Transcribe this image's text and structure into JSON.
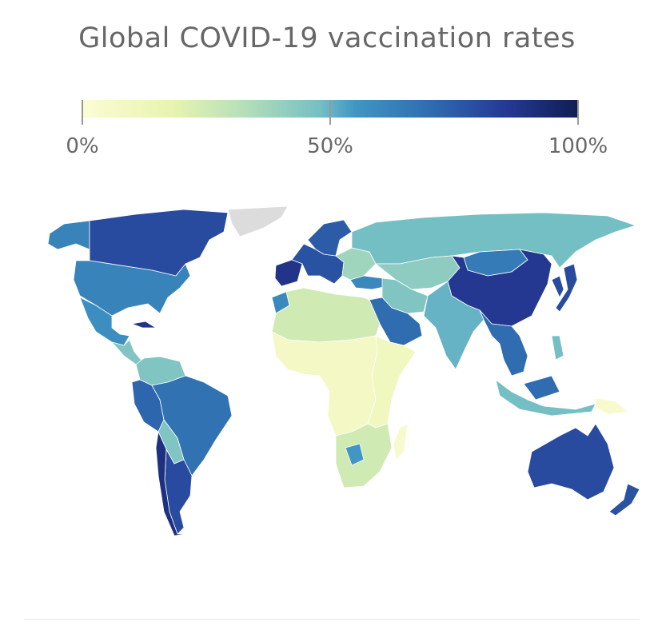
{
  "title": "Global COVID-19 vaccination rates",
  "legend": {
    "labels": [
      "0%",
      "50%",
      "100%"
    ],
    "colors": [
      "#fbfcd4",
      "#e8f4b0",
      "#b8e0b8",
      "#74bfc4",
      "#4196c4",
      "#2f6db0",
      "#253a96",
      "#101d55"
    ],
    "no_data_color": "#dcdcdc"
  },
  "chart_data": {
    "type": "choropleth",
    "title": "Global COVID-19 vaccination rates",
    "scale": {
      "min": 0,
      "max": 100,
      "unit": "%"
    },
    "regions": [
      {
        "name": "Greenland",
        "value": null
      },
      {
        "name": "Alaska (USA)",
        "value": 62
      },
      {
        "name": "Canada",
        "value": 80
      },
      {
        "name": "United States",
        "value": 62
      },
      {
        "name": "Mexico",
        "value": 58
      },
      {
        "name": "Central America",
        "value": 45
      },
      {
        "name": "Cuba",
        "value": 88
      },
      {
        "name": "Colombia/Venezuela",
        "value": 45
      },
      {
        "name": "Ecuador/Peru",
        "value": 72
      },
      {
        "name": "Brazil",
        "value": 68
      },
      {
        "name": "Bolivia/Paraguay",
        "value": 45
      },
      {
        "name": "Argentina",
        "value": 80
      },
      {
        "name": "Chile",
        "value": 90
      },
      {
        "name": "Western Europe",
        "value": 78
      },
      {
        "name": "Scandinavia",
        "value": 75
      },
      {
        "name": "Iberia",
        "value": 88
      },
      {
        "name": "Eastern Europe",
        "value": 38
      },
      {
        "name": "Russia",
        "value": 48
      },
      {
        "name": "Central Asia",
        "value": 42
      },
      {
        "name": "Mongolia",
        "value": 65
      },
      {
        "name": "China",
        "value": 86
      },
      {
        "name": "Japan/Korea",
        "value": 80
      },
      {
        "name": "Turkey",
        "value": 60
      },
      {
        "name": "Iran/Iraq",
        "value": 45
      },
      {
        "name": "Saudi Arabia/Gulf",
        "value": 70
      },
      {
        "name": "North Africa",
        "value": 25
      },
      {
        "name": "Morocco",
        "value": 60
      },
      {
        "name": "West/Central Africa",
        "value": 8
      },
      {
        "name": "East Africa",
        "value": 10
      },
      {
        "name": "Southern Africa",
        "value": 25
      },
      {
        "name": "Botswana",
        "value": 55
      },
      {
        "name": "Madagascar",
        "value": 4
      },
      {
        "name": "India/South Asia",
        "value": 50
      },
      {
        "name": "Southeast Asia",
        "value": 70
      },
      {
        "name": "Indonesia/Philippines",
        "value": 48
      },
      {
        "name": "Papua New Guinea",
        "value": 4
      },
      {
        "name": "Australia",
        "value": 80
      },
      {
        "name": "New Zealand",
        "value": 78
      }
    ]
  }
}
